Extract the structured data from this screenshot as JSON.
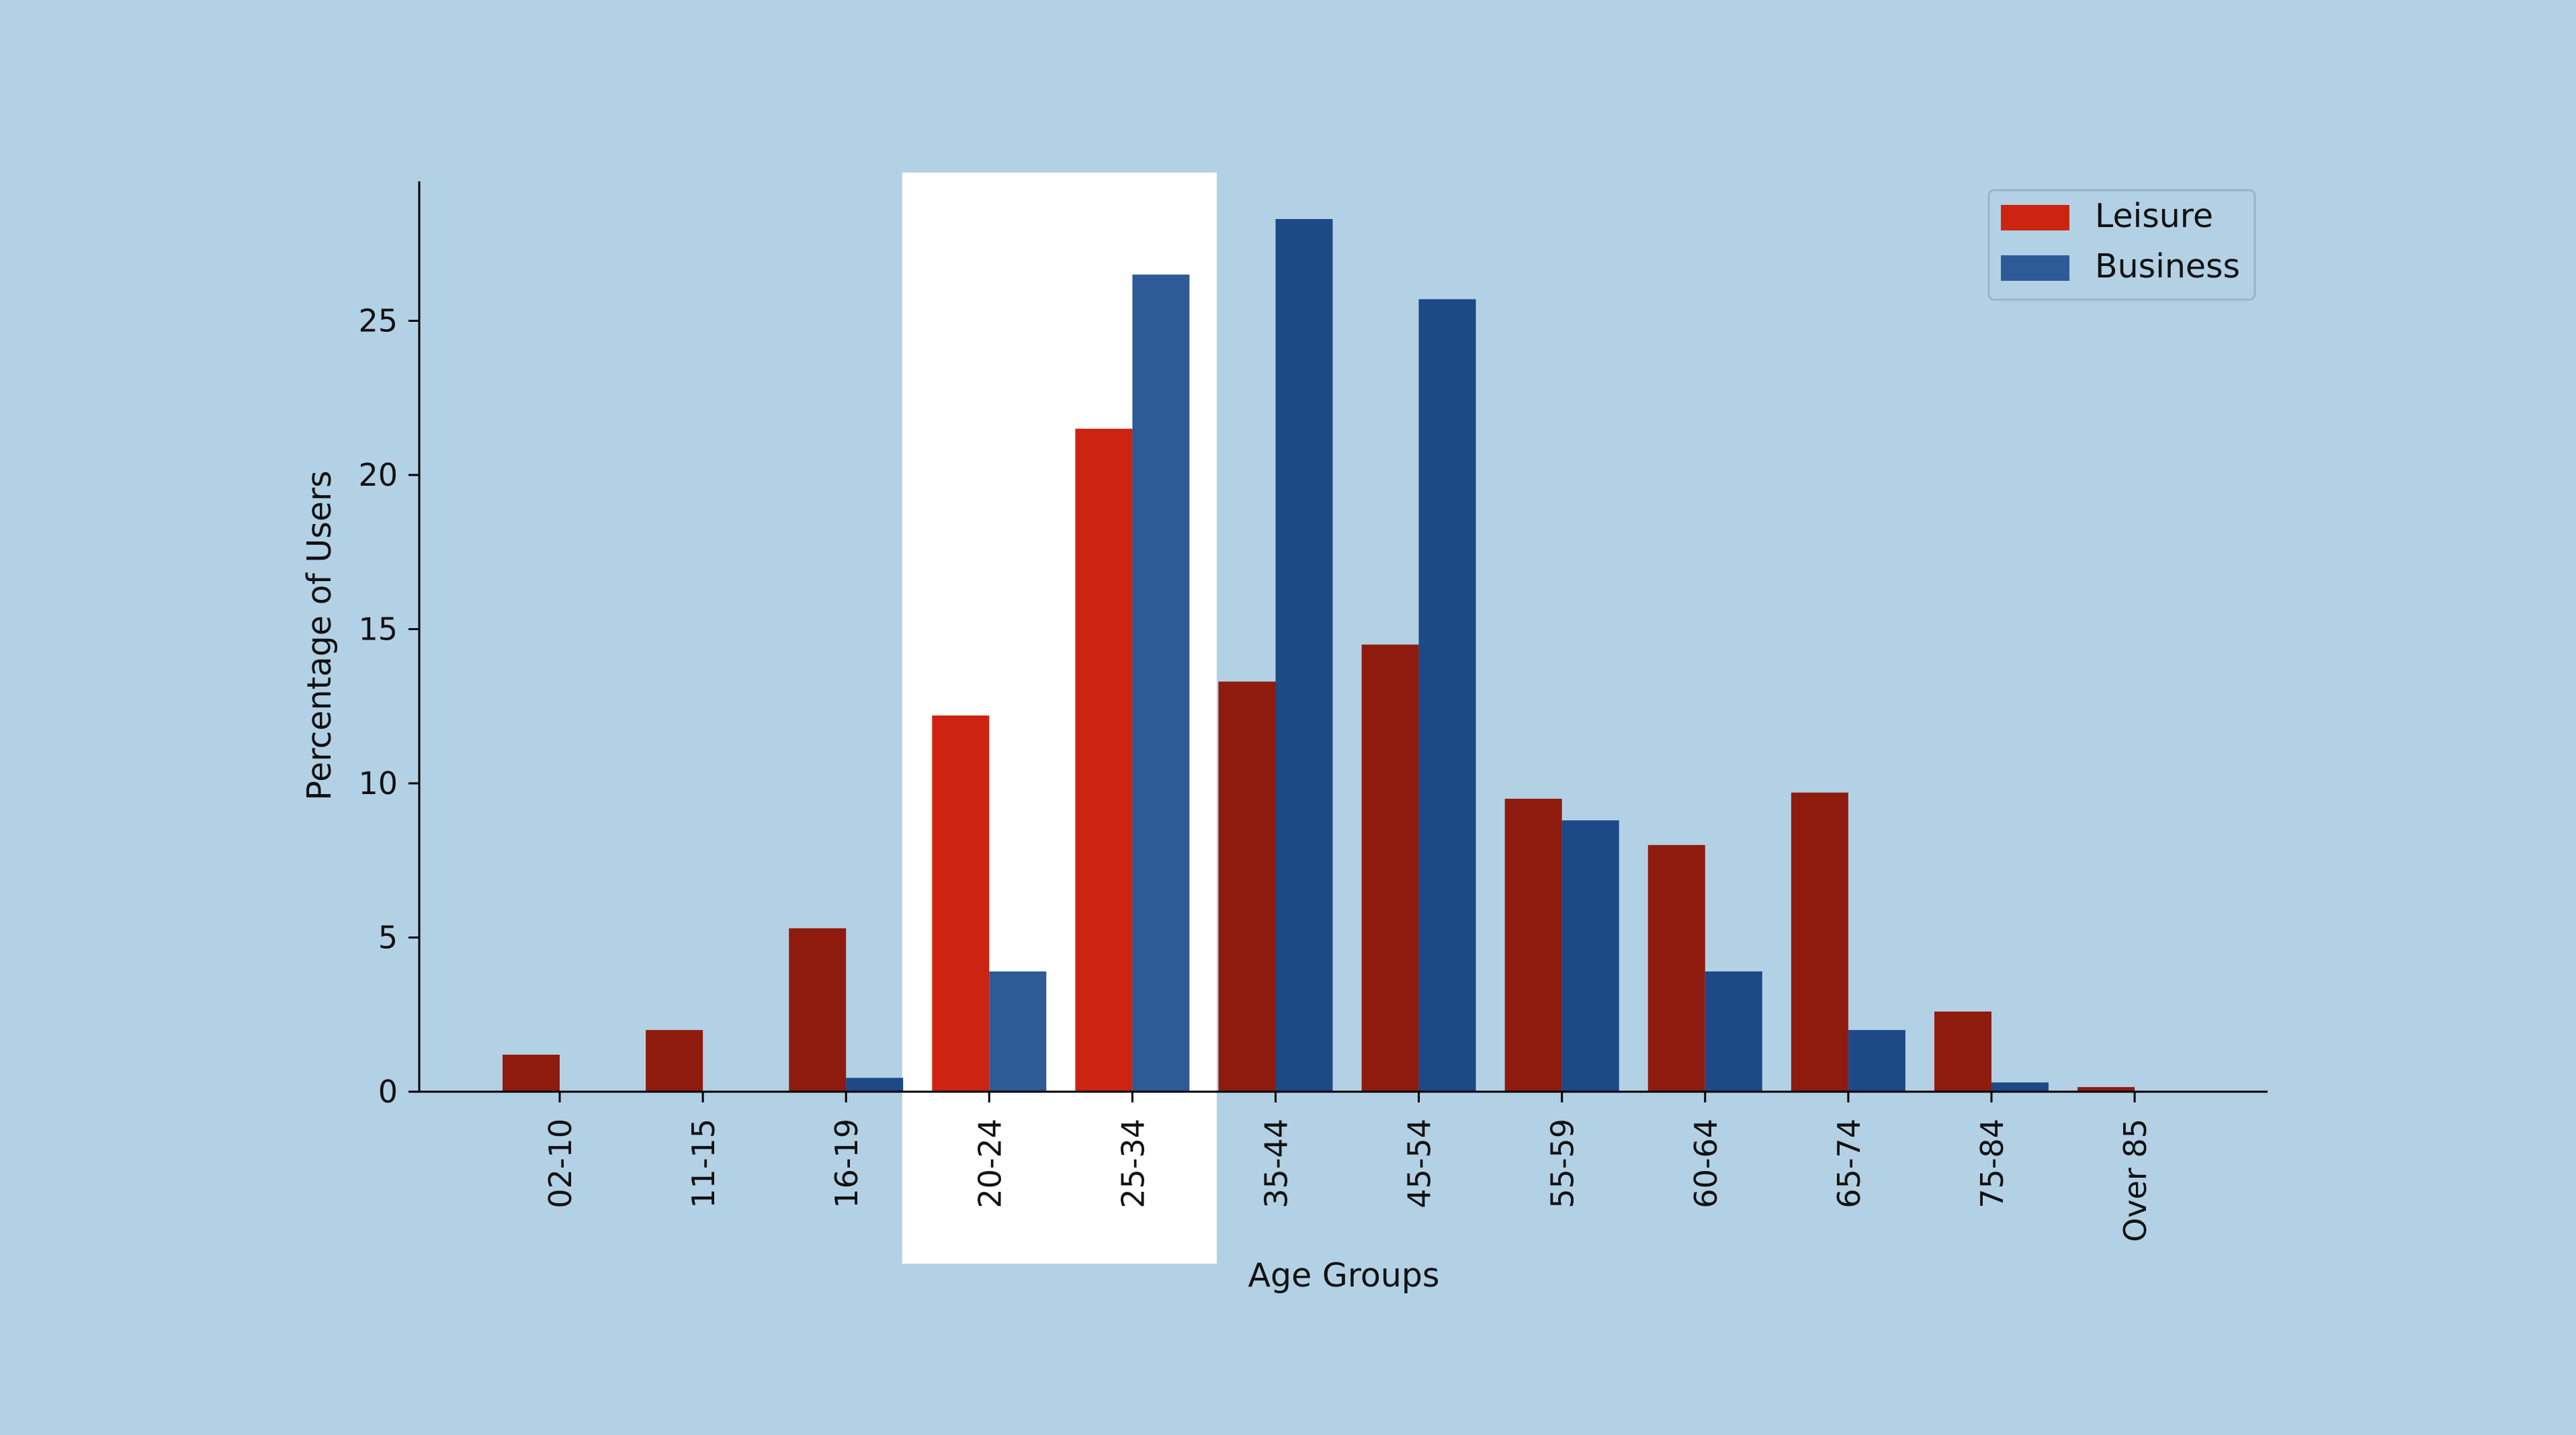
{
  "chart_data": {
    "type": "bar",
    "title": "",
    "xlabel": "Age Groups",
    "ylabel": "Percentage of Users",
    "categories": [
      "02-10",
      "11-15",
      "16-19",
      "20-24",
      "25-34",
      "35-44",
      "45-54",
      "55-59",
      "60-64",
      "65-74",
      "75-84",
      "Over 85"
    ],
    "series": [
      {
        "name": "Leisure",
        "color": "#cd2311",
        "color_dim": "#8f1b0e",
        "values": [
          1.2,
          2.0,
          5.3,
          12.2,
          21.5,
          13.3,
          14.5,
          9.5,
          8.0,
          9.7,
          2.6,
          0.15
        ]
      },
      {
        "name": "Business",
        "color": "#2e5b98",
        "color_dim": "#1e4987",
        "values": [
          0,
          0,
          0.45,
          3.9,
          26.5,
          28.3,
          25.7,
          8.8,
          3.9,
          2.0,
          0.3,
          0
        ]
      }
    ],
    "highlight_categories": [
      "20-24",
      "25-34"
    ],
    "ylim": [
      0,
      29.5
    ],
    "yticks": [
      0,
      5,
      10,
      15,
      20,
      25
    ],
    "grid": false,
    "legend_position": "top-right",
    "background_color": "#b3d1e5",
    "highlight_color": "#ffffff"
  }
}
